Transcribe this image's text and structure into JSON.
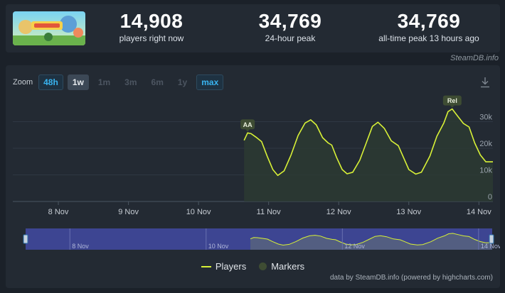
{
  "header": {
    "game_thumbnail_icon": "game-capsule-art",
    "stats": [
      {
        "value": "14,908",
        "label": "players right now"
      },
      {
        "value": "34,769",
        "label": "24-hour peak"
      },
      {
        "value": "34,769",
        "label": "all-time peak 13 hours ago"
      }
    ],
    "source_link": "SteamDB.info"
  },
  "toolbar": {
    "zoom_label": "Zoom",
    "zoom_options": [
      {
        "label": "48h",
        "state": "enabled"
      },
      {
        "label": "1w",
        "state": "selected"
      },
      {
        "label": "1m",
        "state": "disabled"
      },
      {
        "label": "3m",
        "state": "disabled"
      },
      {
        "label": "6m",
        "state": "disabled"
      },
      {
        "label": "1y",
        "state": "disabled"
      },
      {
        "label": "max",
        "state": "enabled"
      }
    ],
    "download_icon": "download-icon"
  },
  "chart_data": {
    "type": "area",
    "x_unit": "days since 7 Nov 00:00",
    "x_ticks": [
      {
        "x": 1,
        "label": "8 Nov"
      },
      {
        "x": 2,
        "label": "9 Nov"
      },
      {
        "x": 3,
        "label": "10 Nov"
      },
      {
        "x": 4,
        "label": "11 Nov"
      },
      {
        "x": 5,
        "label": "12 Nov"
      },
      {
        "x": 6,
        "label": "13 Nov"
      },
      {
        "x": 7,
        "label": "14 Nov"
      }
    ],
    "y_ticks": [
      {
        "y": 0,
        "label": "0"
      },
      {
        "y": 10000,
        "label": "10k"
      },
      {
        "y": 20000,
        "label": "20k"
      },
      {
        "y": 30000,
        "label": "30k"
      }
    ],
    "xlim": [
      0.35,
      7.2
    ],
    "ylim": [
      0,
      40000
    ],
    "series": [
      {
        "name": "Players",
        "color": "#d8f137",
        "points": [
          [
            3.65,
            23000
          ],
          [
            3.7,
            25800
          ],
          [
            3.75,
            25500
          ],
          [
            3.82,
            24200
          ],
          [
            3.9,
            22500
          ],
          [
            3.98,
            17000
          ],
          [
            4.06,
            12000
          ],
          [
            4.13,
            9800
          ],
          [
            4.22,
            11500
          ],
          [
            4.32,
            17500
          ],
          [
            4.42,
            24800
          ],
          [
            4.52,
            29500
          ],
          [
            4.6,
            30700
          ],
          [
            4.68,
            28800
          ],
          [
            4.77,
            24000
          ],
          [
            4.85,
            22000
          ],
          [
            4.9,
            21200
          ],
          [
            4.97,
            16500
          ],
          [
            5.05,
            12000
          ],
          [
            5.12,
            10400
          ],
          [
            5.2,
            11000
          ],
          [
            5.3,
            15500
          ],
          [
            5.4,
            22500
          ],
          [
            5.48,
            28200
          ],
          [
            5.56,
            29800
          ],
          [
            5.65,
            27500
          ],
          [
            5.75,
            22800
          ],
          [
            5.85,
            21000
          ],
          [
            5.93,
            16200
          ],
          [
            6.0,
            12000
          ],
          [
            6.1,
            10300
          ],
          [
            6.18,
            11000
          ],
          [
            6.3,
            17000
          ],
          [
            6.4,
            24500
          ],
          [
            6.5,
            29500
          ],
          [
            6.56,
            33800
          ],
          [
            6.62,
            34769
          ],
          [
            6.7,
            32000
          ],
          [
            6.78,
            29300
          ],
          [
            6.86,
            28000
          ],
          [
            6.94,
            22000
          ],
          [
            7.02,
            17500
          ],
          [
            7.1,
            14900
          ],
          [
            7.2,
            14908
          ]
        ]
      }
    ],
    "markers": [
      {
        "x": 3.7,
        "y": 25800,
        "label": "AA"
      },
      {
        "x": 6.62,
        "y": 34769,
        "label": "Rel"
      }
    ],
    "legend": [
      {
        "label": "Players",
        "type": "line",
        "color": "#d8f137"
      },
      {
        "label": "Markers",
        "type": "dot",
        "color": "#3e4c33"
      }
    ],
    "legend_position": "bottom-center",
    "navigator_ticks": [
      {
        "x": 1,
        "label": "8 Nov"
      },
      {
        "x": 3,
        "label": "10 Nov"
      },
      {
        "x": 5,
        "label": "12 Nov"
      },
      {
        "x": 7,
        "label": "14 Nov"
      }
    ],
    "grid": true
  },
  "footer": {
    "credit": "data by SteamDB.info (powered by highcharts.com)"
  }
}
